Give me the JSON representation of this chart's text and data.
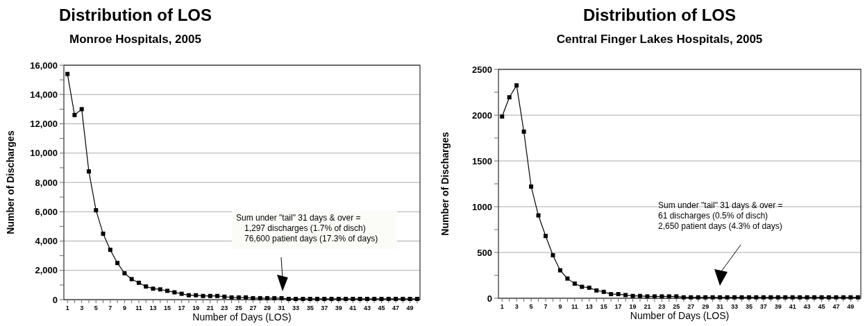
{
  "chart_data": [
    {
      "type": "line",
      "title": "Distribution of LOS",
      "subtitle": "Monroe Hospitals, 2005",
      "xlabel": "Number of Days (LOS)",
      "ylabel": "Number of Discharges",
      "x": [
        1,
        2,
        3,
        4,
        5,
        6,
        7,
        8,
        9,
        10,
        11,
        12,
        13,
        14,
        15,
        16,
        17,
        18,
        19,
        20,
        21,
        22,
        23,
        24,
        25,
        26,
        27,
        28,
        29,
        30,
        31,
        32,
        33,
        34,
        35,
        36,
        37,
        38,
        39,
        40,
        41,
        42,
        43,
        44,
        45,
        46,
        47,
        48,
        49,
        50
      ],
      "series": [
        {
          "color": "#000000",
          "values": [
            15400,
            12600,
            13000,
            8750,
            6100,
            4500,
            3400,
            2500,
            1800,
            1400,
            1150,
            900,
            750,
            700,
            600,
            500,
            400,
            300,
            300,
            250,
            250,
            250,
            200,
            150,
            150,
            150,
            100,
            100,
            100,
            100,
            100,
            50,
            50,
            50,
            50,
            50,
            50,
            50,
            50,
            50,
            50,
            50,
            50,
            50,
            50,
            50,
            50,
            50,
            50,
            50
          ]
        }
      ],
      "xlim": [
        0.5,
        50.4
      ],
      "xticks": [
        1,
        {
          "value": 2,
          "label": null
        },
        3,
        {
          "value": 4,
          "label": null
        },
        5,
        {
          "value": 6,
          "label": null
        },
        7,
        {
          "value": 8,
          "label": null
        },
        9,
        {
          "value": 10,
          "label": null
        },
        11,
        {
          "value": 12,
          "label": null
        },
        13,
        {
          "value": 14,
          "label": null
        },
        15,
        {
          "value": 16,
          "label": null
        },
        17,
        {
          "value": 18,
          "label": null
        },
        19,
        {
          "value": 20,
          "label": null
        },
        21,
        {
          "value": 22,
          "label": null
        },
        23,
        {
          "value": 24,
          "label": null
        },
        25,
        {
          "value": 26,
          "label": null
        },
        27,
        {
          "value": 28,
          "label": null
        },
        29,
        {
          "value": 30,
          "label": null
        },
        31,
        {
          "value": 32,
          "label": null
        },
        33,
        {
          "value": 34,
          "label": null
        },
        35,
        {
          "value": 36,
          "label": null
        },
        37,
        {
          "value": 38,
          "label": null
        },
        39,
        {
          "value": 40,
          "label": null
        },
        41,
        {
          "value": 42,
          "label": null
        },
        43,
        {
          "value": 44,
          "label": null
        },
        45,
        {
          "value": 46,
          "label": null
        },
        47,
        {
          "value": 48,
          "label": null
        },
        49,
        {
          "value": 50,
          "label": null
        }
      ],
      "ylim": [
        0,
        16000
      ],
      "yticks": [
        {
          "value": 0,
          "label": "0"
        },
        {
          "value": 1000,
          "label": null
        },
        {
          "value": 2000,
          "label": "2,000"
        },
        {
          "value": 3000,
          "label": null
        },
        {
          "value": 4000,
          "label": "4,000"
        },
        {
          "value": 5000,
          "label": null
        },
        {
          "value": 6000,
          "label": "6,000"
        },
        {
          "value": 7000,
          "label": null
        },
        {
          "value": 8000,
          "label": "8,000"
        },
        {
          "value": 9000,
          "label": null
        },
        {
          "value": 10000,
          "label": "10,000"
        },
        {
          "value": 11000,
          "label": null
        },
        {
          "value": 12000,
          "label": "12,000"
        },
        {
          "value": 13000,
          "label": null
        },
        {
          "value": 14000,
          "label": "14,000"
        },
        {
          "value": 15000,
          "label": null
        },
        {
          "value": 16000,
          "label": "16,000"
        }
      ],
      "grid": "y",
      "marker": "square",
      "line_style": "solid",
      "annotations": [
        "Sum under \"tail\" 31 days & over =\n1,297 discharges (1.7% of disch)\n76,600 patient days (17.3% of days)"
      ]
    },
    {
      "type": "line",
      "title": "Distribution of LOS",
      "subtitle": "Central Finger Lakes Hospitals, 2005",
      "xlabel": "Number of Days (LOS)",
      "ylabel": "Number of Discharges",
      "x": [
        1,
        2,
        3,
        4,
        5,
        6,
        7,
        8,
        9,
        10,
        11,
        12,
        13,
        14,
        15,
        16,
        17,
        18,
        19,
        20,
        21,
        22,
        23,
        24,
        25,
        26,
        27,
        28,
        29,
        30,
        31,
        32,
        33,
        34,
        35,
        36,
        37,
        38,
        39,
        40,
        41,
        42,
        43,
        44,
        45,
        46,
        47,
        48,
        49,
        50
      ],
      "series": [
        {
          "color": "#000000",
          "values": [
            1985,
            2195,
            2325,
            1820,
            1220,
            905,
            680,
            470,
            305,
            215,
            160,
            125,
            115,
            85,
            70,
            45,
            45,
            35,
            25,
            25,
            20,
            20,
            20,
            20,
            20,
            10,
            10,
            10,
            10,
            10,
            10,
            10,
            10,
            10,
            10,
            10,
            10,
            10,
            10,
            10,
            10,
            10,
            10,
            10,
            10,
            10,
            10,
            10,
            10,
            10
          ]
        }
      ],
      "xlim": [
        0.5,
        50.4
      ],
      "xticks": [
        1,
        {
          "value": 2,
          "label": null
        },
        3,
        {
          "value": 4,
          "label": null
        },
        5,
        {
          "value": 6,
          "label": null
        },
        7,
        {
          "value": 8,
          "label": null
        },
        9,
        {
          "value": 10,
          "label": null
        },
        11,
        {
          "value": 12,
          "label": null
        },
        13,
        {
          "value": 14,
          "label": null
        },
        15,
        {
          "value": 16,
          "label": null
        },
        17,
        {
          "value": 18,
          "label": null
        },
        19,
        {
          "value": 20,
          "label": null
        },
        21,
        {
          "value": 22,
          "label": null
        },
        23,
        {
          "value": 24,
          "label": null
        },
        25,
        {
          "value": 26,
          "label": null
        },
        27,
        {
          "value": 28,
          "label": null
        },
        29,
        {
          "value": 30,
          "label": null
        },
        31,
        {
          "value": 32,
          "label": null
        },
        33,
        {
          "value": 34,
          "label": null
        },
        35,
        {
          "value": 36,
          "label": null
        },
        37,
        {
          "value": 38,
          "label": null
        },
        39,
        {
          "value": 40,
          "label": null
        },
        41,
        {
          "value": 42,
          "label": null
        },
        43,
        {
          "value": 44,
          "label": null
        },
        45,
        {
          "value": 46,
          "label": null
        },
        47,
        {
          "value": 48,
          "label": null
        },
        49,
        {
          "value": 50,
          "label": null
        }
      ],
      "ylim": [
        0,
        2500
      ],
      "yticks": [
        0,
        {
          "value": 250,
          "label": null
        },
        500,
        {
          "value": 750,
          "label": null
        },
        1000,
        {
          "value": 1250,
          "label": null
        },
        1500,
        {
          "value": 1750,
          "label": null
        },
        2000,
        {
          "value": 2250,
          "label": null
        },
        2500
      ],
      "grid": "y",
      "marker": "square",
      "line_style": "solid",
      "annotations": [
        "Sum under \"tail\" 31 days & over =\n61 discharges (0.5% of disch)\n2,650 patient days (4.3% of days)"
      ]
    }
  ]
}
